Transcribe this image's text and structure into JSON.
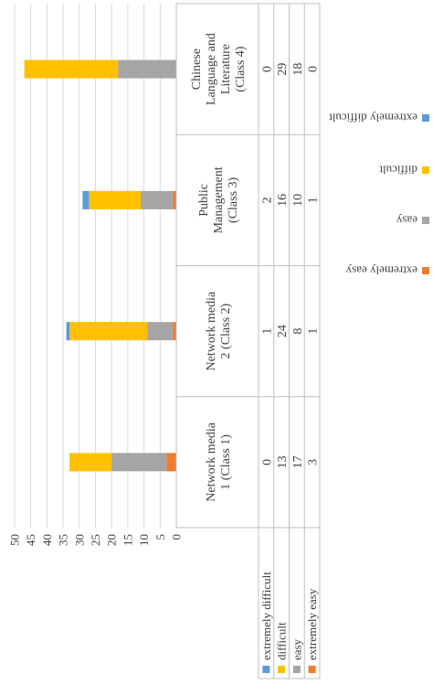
{
  "chart_data": {
    "type": "bar",
    "stacked": true,
    "orientation": "vertical",
    "image_rotation": "90deg counter-clockwise",
    "categories": [
      [
        "Network media",
        "1 (Class 1)"
      ],
      [
        "Network media",
        "2 (Class 2)"
      ],
      [
        "Public",
        "Management",
        "(Class 3)"
      ],
      [
        "Chinese",
        "Language and",
        "Literature",
        "(Class 4)"
      ]
    ],
    "series": [
      {
        "name": "extremely easy",
        "color": "#ED7D31",
        "values": [
          3,
          1,
          1,
          0
        ]
      },
      {
        "name": "easy",
        "color": "#A5A5A5",
        "values": [
          17,
          8,
          10,
          18
        ]
      },
      {
        "name": "difficult",
        "color": "#FFC000",
        "values": [
          13,
          24,
          16,
          29
        ]
      },
      {
        "name": "extremely difficult",
        "color": "#5B9BD5",
        "values": [
          0,
          1,
          2,
          0
        ]
      }
    ],
    "table_row_order": [
      "extremely difficult",
      "difficult",
      "easy",
      "extremely easy"
    ],
    "legend_order": [
      "extremely difficult",
      "difficult",
      "easy",
      "extremely easy"
    ],
    "ylim": [
      0,
      50
    ],
    "yticks": [
      0,
      5,
      10,
      15,
      20,
      25,
      30,
      35,
      40,
      45,
      50
    ],
    "grid": true,
    "legend_position": "top",
    "data_table": true,
    "title": "",
    "xlabel": "",
    "ylabel": ""
  }
}
